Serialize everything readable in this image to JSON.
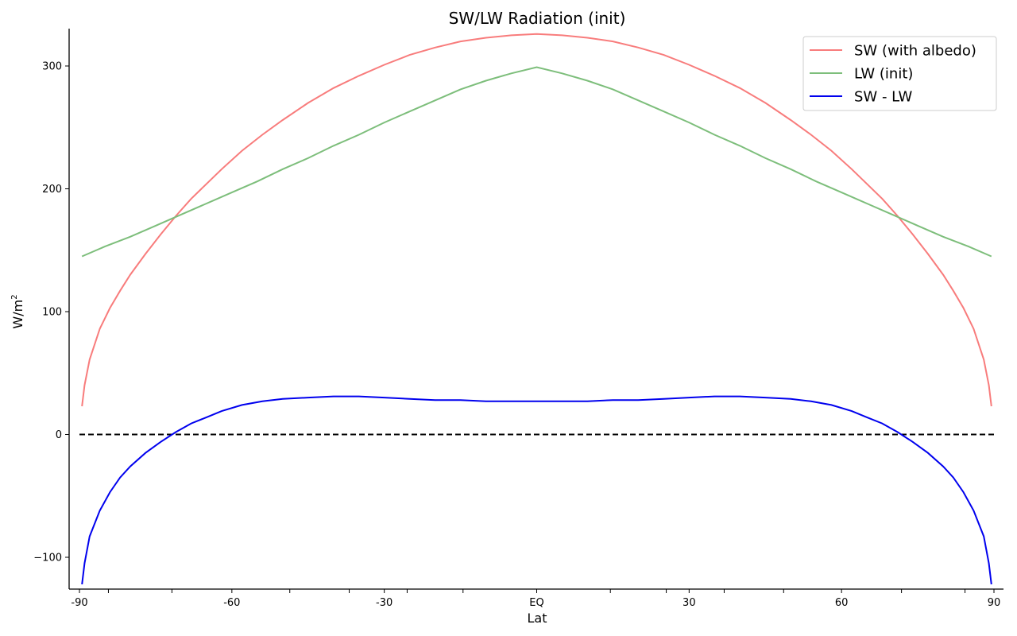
{
  "chart_data": {
    "type": "line",
    "title": "SW/LW Radiation (init)",
    "xlabel": "Lat",
    "ylabel": "W/m",
    "ylabel_superscript": "2",
    "xlim": [
      -90,
      90
    ],
    "ylim": [
      -125,
      330
    ],
    "x_tick_values": [
      -90,
      -60,
      -30,
      0,
      30,
      60,
      90
    ],
    "x_tick_labels": [
      "-90",
      "-60",
      "-30",
      "EQ",
      "30",
      "60",
      "90"
    ],
    "x_minor_tick_values": [
      -84.3,
      -71.8,
      -48.6,
      -36.9,
      -25.5,
      -14.5,
      14.5,
      25.5,
      36.9,
      48.6,
      71.8,
      84.3
    ],
    "y_tick_values": [
      -100,
      0,
      100,
      200,
      300
    ],
    "y_tick_labels": [
      "−100",
      "0",
      "100",
      "200",
      "300"
    ],
    "grid": false,
    "legend_position": "top-right",
    "zero_line": {
      "y": 0,
      "style": "dashed",
      "color": "#000000"
    },
    "series": [
      {
        "name": "SW (with albedo)",
        "color": "#f87c7c",
        "x": [
          -89.5,
          -89,
          -88,
          -86,
          -84,
          -82,
          -80,
          -77,
          -74,
          -71,
          -68,
          -65,
          -62,
          -58,
          -54,
          -50,
          -45,
          -40,
          -35,
          -30,
          -25,
          -20,
          -15,
          -10,
          -5,
          0,
          5,
          10,
          15,
          20,
          25,
          30,
          35,
          40,
          45,
          50,
          54,
          58,
          62,
          65,
          68,
          71,
          74,
          77,
          80,
          82,
          84,
          86,
          88,
          89,
          89.5
        ],
        "y": [
          23,
          40,
          61,
          86,
          103,
          117,
          130,
          147,
          163,
          178,
          192,
          204,
          216,
          231,
          244,
          256,
          270,
          282,
          292,
          301,
          309,
          315,
          320,
          323,
          325,
          326,
          325,
          323,
          320,
          315,
          309,
          301,
          292,
          282,
          270,
          256,
          244,
          231,
          216,
          204,
          192,
          178,
          163,
          147,
          130,
          117,
          103,
          86,
          61,
          40,
          23
        ]
      },
      {
        "name": "LW (init)",
        "color": "#7dbe7b",
        "x": [
          -89.5,
          -85,
          -80,
          -75,
          -70,
          -65,
          -60,
          -55,
          -50,
          -45,
          -40,
          -35,
          -30,
          -25,
          -20,
          -15,
          -10,
          -5,
          0,
          5,
          10,
          15,
          20,
          25,
          30,
          35,
          40,
          45,
          50,
          55,
          60,
          65,
          70,
          75,
          80,
          85,
          89.5
        ],
        "y": [
          145,
          153,
          161,
          170,
          179,
          188,
          197,
          206,
          216,
          225,
          235,
          244,
          254,
          263,
          272,
          281,
          288,
          294,
          299,
          294,
          288,
          281,
          272,
          263,
          254,
          244,
          235,
          225,
          216,
          206,
          197,
          188,
          179,
          170,
          161,
          153,
          145
        ]
      },
      {
        "name": "SW - LW",
        "color": "#0000ee",
        "x": [
          -89.5,
          -89,
          -88,
          -86,
          -84,
          -82,
          -80,
          -77,
          -74,
          -71,
          -68,
          -65,
          -62,
          -58,
          -54,
          -50,
          -45,
          -40,
          -35,
          -30,
          -25,
          -20,
          -15,
          -10,
          -5,
          0,
          5,
          10,
          15,
          20,
          25,
          30,
          35,
          40,
          45,
          50,
          54,
          58,
          62,
          65,
          68,
          71,
          74,
          77,
          80,
          82,
          84,
          86,
          88,
          89,
          89.5
        ],
        "y": [
          -122,
          -105,
          -83,
          -62,
          -47,
          -35,
          -26,
          -15,
          -6,
          2,
          9,
          14,
          19,
          24,
          27,
          29,
          30,
          31,
          31,
          30,
          29,
          28,
          28,
          27,
          27,
          27,
          27,
          27,
          28,
          28,
          29,
          30,
          31,
          31,
          30,
          29,
          27,
          24,
          19,
          14,
          9,
          2,
          -6,
          -15,
          -26,
          -35,
          -47,
          -62,
          -83,
          -105,
          -122
        ]
      }
    ]
  }
}
